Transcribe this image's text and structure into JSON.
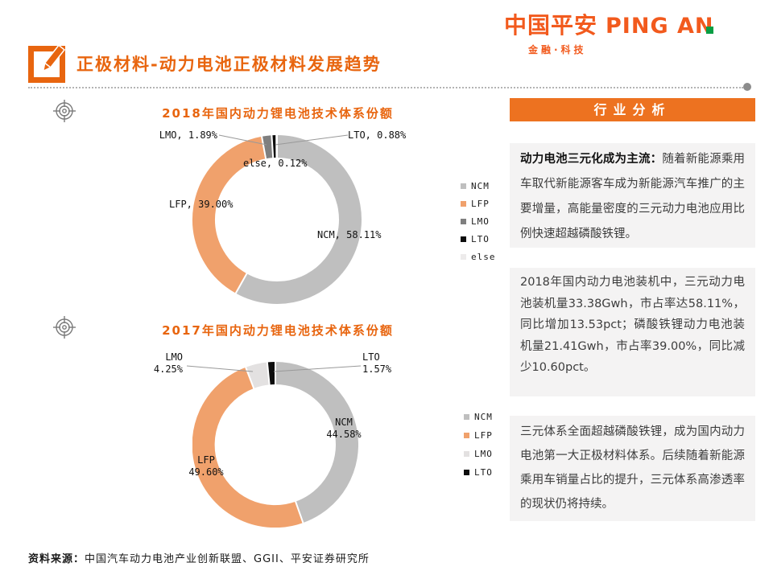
{
  "logo": {
    "brand_cn": "中国平安",
    "brand_en": "PING AN",
    "tagline": "金融·科技"
  },
  "header": {
    "title": "正极材料-动力电池正极材料发展趋势"
  },
  "panel": {
    "title": "行业分析",
    "blocks": [
      {
        "lead": "动力电池三元化成为主流：",
        "body": "随着新能源乘用车取代新能源客车成为新能源汽车推广的主要增量，高能量密度的三元动力电池应用比例快速超越磷酸铁锂。"
      },
      {
        "lead": "",
        "body": "2018年国内动力电池装机中，三元动力电池装机量33.38Gwh，市占率达58.11%，同比增加13.53pct；磷酸铁锂动力电池装机量21.41Gwh，市占率39.00%，同比减少10.60pct。"
      },
      {
        "lead": "",
        "body": "三元体系全面超越磷酸铁锂，成为国内动力电池第一大正极材料体系。后续随着新能源乘用车销量占比的提升，三元体系高渗透率的现状仍将持续。"
      }
    ]
  },
  "source": {
    "label": "资料来源：",
    "text": "中国汽车动力电池产业创新联盟、GGII、平安证券研究所"
  },
  "chart_data": [
    {
      "type": "donut",
      "title": "2018年国内动力锂电池技术体系份额",
      "unit": "%",
      "start_angle": "top-clockwise",
      "legend_position": "right",
      "series": [
        {
          "name": "NCM",
          "value": 58.11,
          "color": "#BFBFBF"
        },
        {
          "name": "LFP",
          "value": 39.0,
          "color": "#F0A16C"
        },
        {
          "name": "LMO",
          "value": 1.89,
          "color": "#7F7F7F"
        },
        {
          "name": "LTO",
          "value": 0.88,
          "color": "#0D0D0D"
        },
        {
          "name": "else",
          "value": 0.12,
          "color": "#EDEBEB"
        }
      ],
      "callouts": {
        "lmo": "LMO, 1.89%",
        "lto": "LTO, 0.88%",
        "else": "else, 0.12%",
        "lfp": "LFP, 39.00%",
        "ncm": "NCM, 58.11%"
      }
    },
    {
      "type": "donut",
      "title": "2017年国内动力锂电池技术体系份额",
      "unit": "%",
      "start_angle": "top-clockwise",
      "legend_position": "right",
      "series": [
        {
          "name": "NCM",
          "value": 44.58,
          "color": "#BFBFBF"
        },
        {
          "name": "LFP",
          "value": 49.6,
          "color": "#F0A16C"
        },
        {
          "name": "LMO",
          "value": 4.25,
          "color": "#E3E1E1"
        },
        {
          "name": "LTO",
          "value": 1.57,
          "color": "#0D0D0D"
        }
      ],
      "callouts": {
        "lmo": [
          "LMO",
          "4.25%"
        ],
        "lto": [
          "LTO",
          "1.57%"
        ],
        "ncm": [
          "NCM",
          "44.58%"
        ],
        "lfp": [
          "LFP",
          "49.60%"
        ]
      }
    }
  ]
}
